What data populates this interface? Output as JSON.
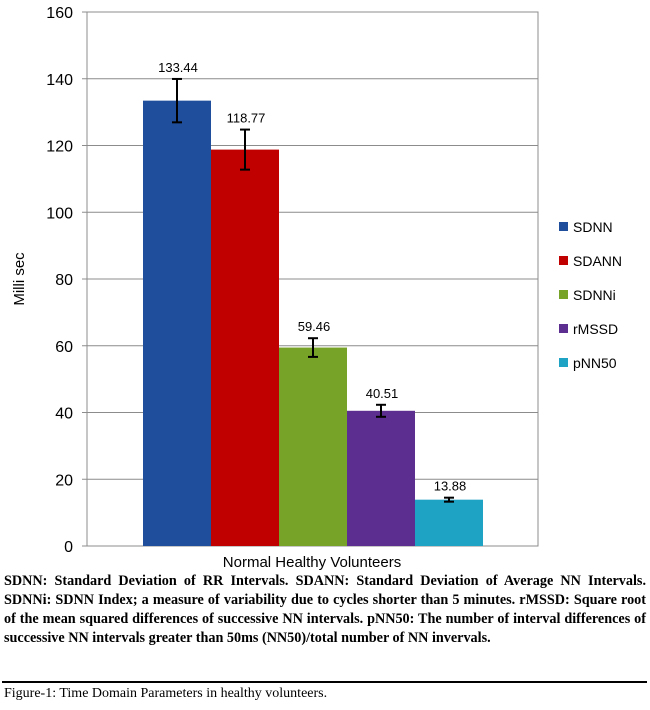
{
  "chart_data": {
    "type": "bar",
    "categories": [
      "Normal Healthy Volunteers"
    ],
    "xlabel": "Normal Healthy Volunteers",
    "ylabel": "Milli sec",
    "ylim": [
      0,
      160
    ],
    "yticks": [
      0,
      20,
      40,
      60,
      80,
      100,
      120,
      140,
      160
    ],
    "grid": true,
    "legend_position": "right",
    "series": [
      {
        "name": "SDNN",
        "values": [
          133.44
        ],
        "error": [
          6.5
        ],
        "label": "133.44",
        "color": "#1F4E9C"
      },
      {
        "name": "SDANN",
        "values": [
          118.77
        ],
        "error": [
          6.0
        ],
        "label": "118.77",
        "color": "#C00000"
      },
      {
        "name": "SDNNi",
        "values": [
          59.46
        ],
        "error": [
          2.8
        ],
        "label": "59.46",
        "color": "#77A328"
      },
      {
        "name": "rMSSD",
        "values": [
          40.51
        ],
        "error": [
          1.8
        ],
        "label": "40.51",
        "color": "#5B2E8F"
      },
      {
        "name": "pNN50",
        "values": [
          13.88
        ],
        "error": [
          0.6
        ],
        "label": "13.88",
        "color": "#1FA3C4"
      }
    ]
  },
  "caption": "SDNN: Standard Deviation of RR Intervals. SDANN: Standard Deviation of Average NN Intervals. SDNNi: SDNN Index; a measure of variability due to cycles shorter than 5 minutes. rMSSD: Square root of the mean squared differences of successive NN intervals. pNN50: The number of interval differences of successive NN intervals greater than 50ms (NN50)/total number of NN invervals.",
  "figure_label": "Figure-1: Time Domain Parameters in healthy volunteers."
}
